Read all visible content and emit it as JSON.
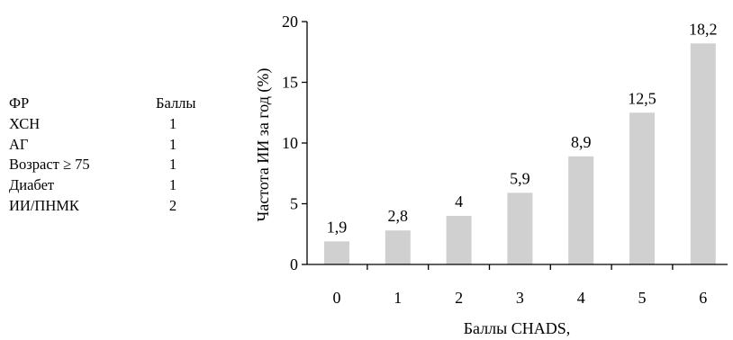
{
  "risk_table": {
    "header": {
      "factor": "ФР",
      "points": "Баллы"
    },
    "rows": [
      {
        "factor": "ХСН",
        "points": "1"
      },
      {
        "factor": "АГ",
        "points": "1"
      },
      {
        "factor": "Возраст ≥ 75",
        "points": "1"
      },
      {
        "factor": "Диабет",
        "points": "1"
      },
      {
        "factor": "ИИ/ПНМК",
        "points": "2"
      }
    ]
  },
  "chart_data": {
    "type": "bar",
    "categories": [
      "0",
      "1",
      "2",
      "3",
      "4",
      "5",
      "6"
    ],
    "values": [
      1.9,
      2.8,
      4,
      5.9,
      8.9,
      12.5,
      18.2
    ],
    "data_labels": [
      "1,9",
      "2,8",
      "4",
      "5,9",
      "8,9",
      "12,5",
      "18,2"
    ],
    "title": "",
    "xlabel": "Баллы CHADS,",
    "ylabel": "Частота ИИ за год (%)",
    "ylim": [
      0,
      20
    ],
    "yticks": [
      0,
      5,
      10,
      15,
      20
    ],
    "grid": false,
    "bar_color": "#d0d0d0"
  }
}
